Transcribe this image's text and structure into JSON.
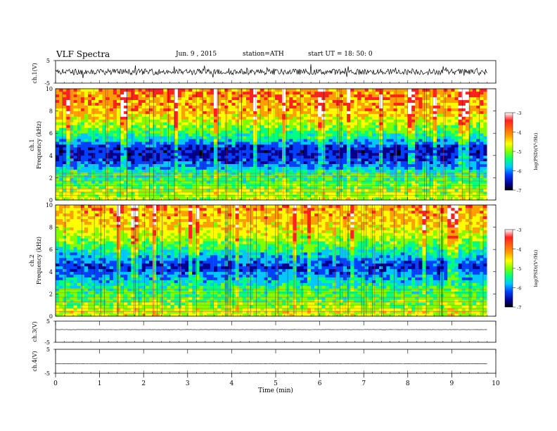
{
  "header": {
    "title": "VLF  Spectra",
    "date": "Jun. 9  , 2015",
    "station": "station=ATH",
    "start": "start  UT =   18: 50: 0"
  },
  "panels": {
    "ch1_wave_label": "ch.1(V)",
    "ch1_spec_label_a": "ch.1",
    "ch1_spec_label_b": "Frequency  (kHz)",
    "ch2_spec_label_a": "ch.2",
    "ch2_spec_label_b": "Frequency  (kHz)",
    "ch3_wave_label": "ch.3(V)",
    "ch4_wave_label": "ch.4(V)"
  },
  "colorbar": {
    "label": "log(PSD)(V²/Hz)",
    "ticks": [
      "-3",
      "-4",
      "-5",
      "-6",
      "-7"
    ],
    "colors": [
      "#ffffff",
      "#ff2020",
      "#ffa000",
      "#ffff00",
      "#80ff00",
      "#00ff80",
      "#00c8ff",
      "#0040ff",
      "#00008c",
      "#000000"
    ]
  },
  "chart_data": [
    {
      "type": "line",
      "name": "ch.1 waveform",
      "ylabel": "ch.1(V)",
      "ylim": [
        -5,
        5
      ],
      "yticks": [
        "5",
        "-5"
      ],
      "xlim": [
        0,
        10
      ],
      "note_values": "broadband noise roughly within -2 to +2 V across 0 to 9.8 min"
    },
    {
      "type": "heatmap",
      "name": "ch.1 spectrogram",
      "ylabel": "Frequency  (kHz)",
      "ylim": [
        0,
        10
      ],
      "yticks": [
        "10",
        "8",
        "6",
        "4",
        "2",
        "0"
      ],
      "xlim": [
        0,
        9.8
      ],
      "bands_khz_logpsd": [
        [
          10,
          -3.8
        ],
        [
          8,
          -4.0
        ],
        [
          6.5,
          -4.8
        ],
        [
          5.5,
          -5.5
        ],
        [
          4.5,
          -6.5
        ],
        [
          3.5,
          -6.2
        ],
        [
          2.5,
          -5.3
        ],
        [
          1.5,
          -5.0
        ],
        [
          0.5,
          -4.6
        ]
      ]
    },
    {
      "type": "heatmap",
      "name": "ch.2 spectrogram",
      "ylabel": "Frequency  (kHz)",
      "ylim": [
        0,
        10
      ],
      "yticks": [
        "10",
        "8",
        "6",
        "4",
        "2",
        "0"
      ],
      "xlim": [
        0,
        9.8
      ],
      "bands_khz_logpsd": [
        [
          10,
          -3.9
        ],
        [
          8,
          -4.2
        ],
        [
          6.5,
          -4.9
        ],
        [
          5.5,
          -5.6
        ],
        [
          4.5,
          -6.3
        ],
        [
          3.5,
          -5.8
        ],
        [
          2.5,
          -5.1
        ],
        [
          1.5,
          -5.0
        ],
        [
          0.5,
          -4.5
        ]
      ]
    },
    {
      "type": "line",
      "name": "ch.3 waveform",
      "ylabel": "ch.3(V)",
      "ylim": [
        -5,
        5
      ],
      "yticks": [
        "5",
        "-5"
      ],
      "xlim": [
        0,
        10
      ],
      "level": 1
    },
    {
      "type": "line",
      "name": "ch.4 waveform",
      "ylabel": "ch.4(V)",
      "ylim": [
        -5,
        5
      ],
      "yticks": [
        "5",
        "-5"
      ],
      "xlim": [
        0,
        10
      ],
      "level": -1
    }
  ],
  "xaxis": {
    "label": "Time  (min)",
    "ticks": [
      "0",
      "1",
      "2",
      "3",
      "4",
      "5",
      "6",
      "7",
      "8",
      "9",
      "10"
    ],
    "xlim": [
      0,
      10
    ]
  }
}
